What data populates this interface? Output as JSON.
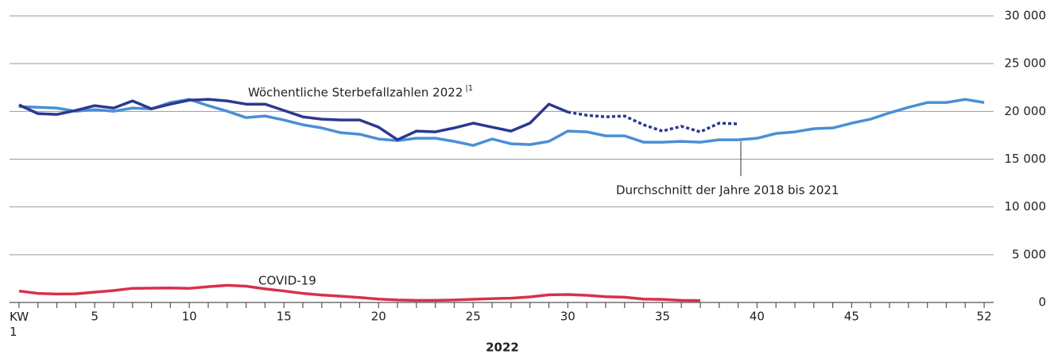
{
  "chart_data": {
    "type": "line",
    "xlabel": "2022",
    "x": [
      1,
      2,
      3,
      4,
      5,
      6,
      7,
      8,
      9,
      10,
      11,
      12,
      13,
      14,
      15,
      16,
      17,
      18,
      19,
      20,
      21,
      22,
      23,
      24,
      25,
      26,
      27,
      28,
      29,
      30,
      31,
      32,
      33,
      34,
      35,
      36,
      37,
      38,
      39,
      40,
      41,
      42,
      43,
      44,
      45,
      46,
      47,
      48,
      49,
      50,
      51,
      52
    ],
    "xlim": [
      0.5,
      52.5
    ],
    "xticks": [
      {
        "value": 1,
        "label": "KW 1"
      },
      5,
      10,
      15,
      20,
      25,
      30,
      35,
      40,
      45,
      52
    ],
    "xminorticks": [
      1,
      2,
      3,
      4,
      5,
      6,
      7,
      8,
      9,
      10,
      11,
      12,
      13,
      14,
      15,
      16,
      17,
      18,
      19,
      20,
      21,
      22,
      23,
      24,
      25,
      26,
      27,
      28,
      29,
      30,
      31,
      32,
      33,
      34,
      35,
      36,
      37,
      38,
      39,
      40,
      41,
      42,
      43,
      44,
      45,
      46,
      47,
      48,
      49,
      50,
      51,
      52
    ],
    "ylim": [
      0,
      30000
    ],
    "yticks": [
      0,
      {
        "value": 5000,
        "label": "5 000"
      },
      {
        "value": 10000,
        "label": "10 000"
      },
      {
        "value": 15000,
        "label": "15 000"
      },
      {
        "value": 20000,
        "label": "20 000"
      },
      {
        "value": 25000,
        "label": "25 000"
      },
      {
        "value": 30000,
        "label": "30 000"
      }
    ],
    "grid": true,
    "series": [
      {
        "name": "Durchschnitt der Jahre 2018 bis 2021",
        "color": "#4a8fd6",
        "values": [
          20510,
          20430,
          20350,
          20020,
          20180,
          20020,
          20350,
          20270,
          20930,
          21260,
          20600,
          20020,
          19350,
          19520,
          19100,
          18600,
          18270,
          17770,
          17610,
          17110,
          16940,
          17190,
          17190,
          16860,
          16440,
          17110,
          16610,
          16530,
          16860,
          17940,
          17860,
          17440,
          17440,
          16780,
          16780,
          16860,
          16780,
          17030,
          17030,
          17190,
          17690,
          17860,
          18190,
          18270,
          18770,
          19190,
          19850,
          20430,
          20930,
          20930,
          21260,
          20930
        ]
      },
      {
        "name": "Wöchentliche Sterbefallzahlen 2022",
        "footnote": "|1",
        "color": "#2b3990",
        "dashed_from": 30,
        "values": [
          20680,
          19770,
          19680,
          20100,
          20600,
          20350,
          21100,
          20270,
          20760,
          21180,
          21260,
          21100,
          20760,
          20760,
          20100,
          19430,
          19190,
          19100,
          19100,
          18350,
          17030,
          17940,
          17860,
          18270,
          18770,
          18350,
          17940,
          18770,
          20760,
          19930,
          19600,
          19430,
          19520,
          18600,
          17940,
          18440,
          17860,
          18770,
          18690,
          null,
          null,
          null,
          null,
          null,
          null,
          null,
          null,
          null,
          null,
          null,
          null,
          null
        ]
      },
      {
        "name": "COVID-19",
        "color": "#d9304a",
        "values": [
          1200,
          950,
          880,
          900,
          1080,
          1250,
          1480,
          1500,
          1520,
          1480,
          1650,
          1800,
          1700,
          1420,
          1200,
          950,
          780,
          650,
          520,
          350,
          260,
          220,
          220,
          260,
          330,
          400,
          450,
          580,
          800,
          830,
          750,
          600,
          550,
          350,
          320,
          220,
          200,
          null,
          null,
          null,
          null,
          null,
          null,
          null,
          null,
          null,
          null,
          null,
          null,
          null,
          null,
          null
        ]
      }
    ]
  }
}
